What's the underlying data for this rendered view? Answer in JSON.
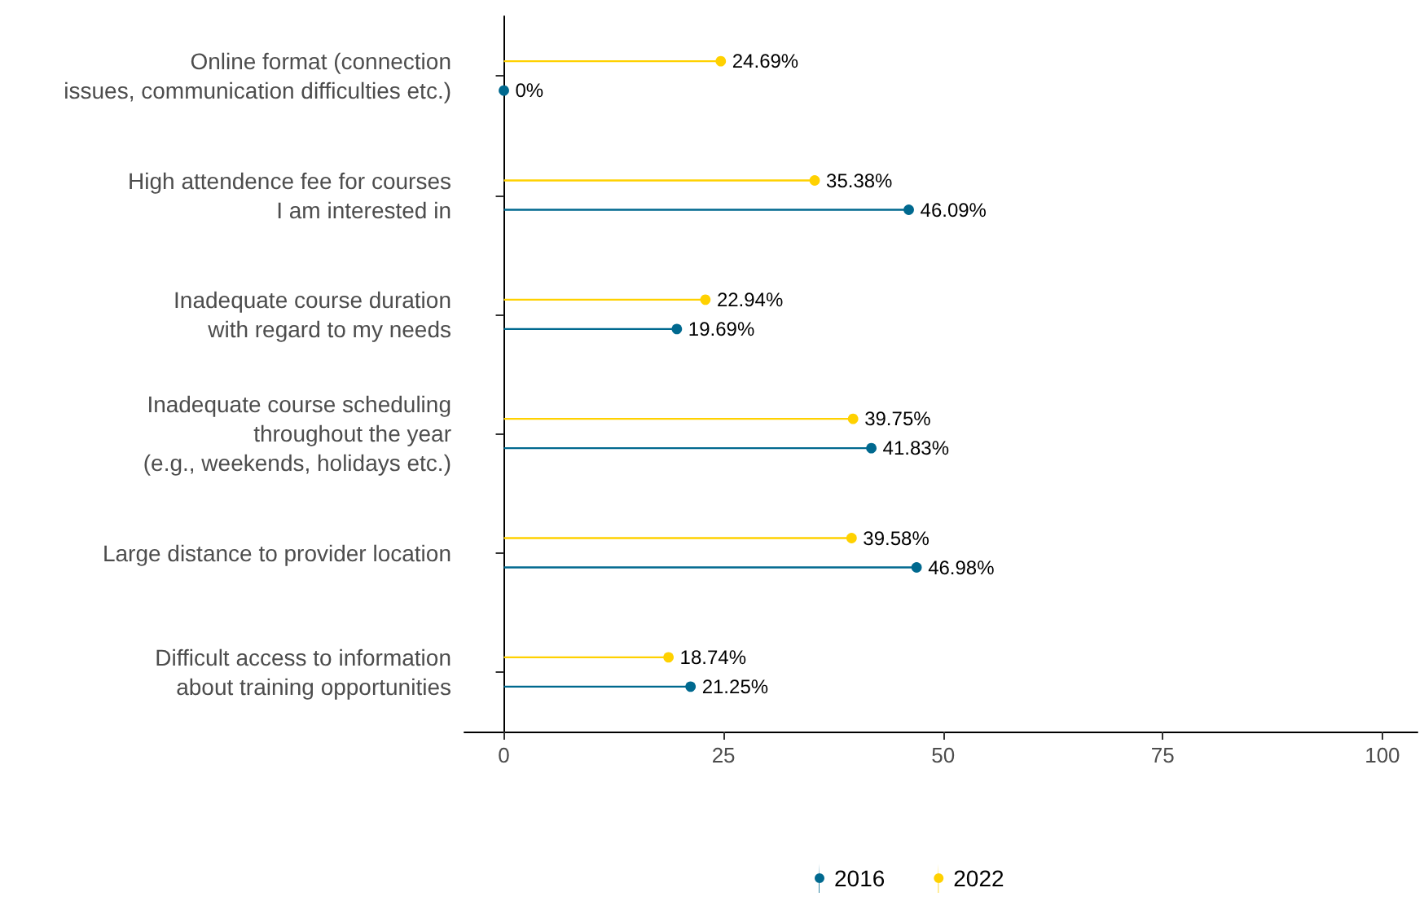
{
  "chart_data": {
    "type": "lollipop",
    "orientation": "horizontal",
    "categories": [
      "Online format (connection\nissues, communication difficulties etc.)",
      "High attendence fee for courses\nI am interested in",
      "Inadequate course duration\nwith regard to my needs",
      "Inadequate course scheduling\nthroughout the year\n(e.g., weekends, holidays etc.)",
      "Large distance to provider location",
      "Difficult access to information\nabout training opportunities"
    ],
    "series": [
      {
        "name": "2016",
        "color": "#00698f",
        "values": [
          0,
          46.09,
          19.69,
          41.83,
          46.98,
          21.25
        ],
        "value_labels": [
          "0%",
          "46.09%",
          "19.69%",
          "41.83%",
          "46.98%",
          "21.25%"
        ]
      },
      {
        "name": "2022",
        "color": "#ffd100",
        "values": [
          24.69,
          35.38,
          22.94,
          39.75,
          39.58,
          18.74
        ],
        "value_labels": [
          "24.69%",
          "35.38%",
          "22.94%",
          "39.75%",
          "39.58%",
          "18.74%"
        ]
      }
    ],
    "xlim": [
      -4.5,
      104
    ],
    "xticks": [
      0,
      25,
      50,
      75,
      100
    ],
    "grid": false,
    "legend": "bottom",
    "marker": "circle"
  }
}
